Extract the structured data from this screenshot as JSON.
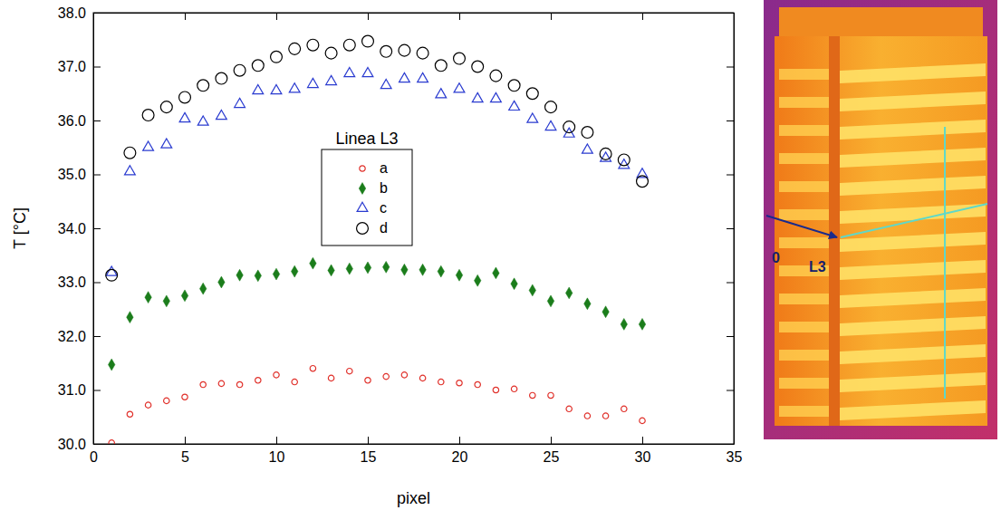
{
  "chart_data": {
    "type": "scatter",
    "x_label": "pixel",
    "y_label": "T [°C]",
    "legend_title": "Linea L3",
    "legend": "center",
    "grid": false,
    "xlim": [
      0,
      35
    ],
    "xticks": [
      0,
      5,
      10,
      15,
      20,
      25,
      30,
      35
    ],
    "ylim": [
      30,
      38
    ],
    "yticks": [
      {
        "value": 30,
        "label": "30.0"
      },
      {
        "value": 31,
        "label": "31.0"
      },
      {
        "value": 32,
        "label": "32.0"
      },
      {
        "value": 33,
        "label": "33.0"
      },
      {
        "value": 34,
        "label": "34.0"
      },
      {
        "value": 35,
        "label": "35.0"
      },
      {
        "value": 36,
        "label": "36.0"
      },
      {
        "value": 37,
        "label": "37.0"
      },
      {
        "value": 38,
        "label": "38.0"
      }
    ],
    "x": [
      1,
      2,
      3,
      4,
      5,
      6,
      7,
      8,
      9,
      10,
      11,
      12,
      13,
      14,
      15,
      16,
      17,
      18,
      19,
      20,
      21,
      22,
      23,
      24,
      25,
      26,
      27,
      28,
      29,
      30
    ],
    "series": [
      {
        "name": "a",
        "color": "#e0302a",
        "marker": "circle",
        "values": [
          30.02,
          30.55,
          30.72,
          30.8,
          30.87,
          31.1,
          31.12,
          31.1,
          31.18,
          31.28,
          31.15,
          31.4,
          31.22,
          31.35,
          31.18,
          31.25,
          31.28,
          31.22,
          31.15,
          31.13,
          31.1,
          31.0,
          31.02,
          30.9,
          30.9,
          30.65,
          30.52,
          30.52,
          30.65,
          30.43
        ]
      },
      {
        "name": "b",
        "color": "#1b7d1b",
        "marker": "diamond",
        "values": [
          31.47,
          32.35,
          32.72,
          32.65,
          32.75,
          32.88,
          33.0,
          33.13,
          33.12,
          33.15,
          33.2,
          33.35,
          33.22,
          33.25,
          33.27,
          33.28,
          33.23,
          33.23,
          33.2,
          33.13,
          33.03,
          33.17,
          32.97,
          32.85,
          32.65,
          32.8,
          32.6,
          32.45,
          32.22,
          32.22
        ]
      },
      {
        "name": "c",
        "color": "#2a3bd0",
        "marker": "triangle",
        "values": [
          33.18,
          35.05,
          35.5,
          35.55,
          36.03,
          35.97,
          36.08,
          36.3,
          36.55,
          36.55,
          36.58,
          36.67,
          36.72,
          36.87,
          36.87,
          36.65,
          36.77,
          36.77,
          36.48,
          36.58,
          36.4,
          36.4,
          36.25,
          36.02,
          35.88,
          35.75,
          35.45,
          35.3,
          35.17,
          35.0
        ]
      },
      {
        "name": "d",
        "color": "#000000",
        "marker": "circle",
        "values": [
          33.13,
          35.4,
          36.1,
          36.25,
          36.43,
          36.65,
          36.78,
          36.93,
          37.02,
          37.18,
          37.33,
          37.4,
          37.25,
          37.4,
          37.47,
          37.28,
          37.3,
          37.25,
          37.02,
          37.15,
          37.0,
          36.83,
          36.65,
          36.5,
          36.25,
          35.88,
          35.78,
          35.38,
          35.27,
          34.87
        ]
      }
    ]
  },
  "thermal_image": {
    "origin_label": "0",
    "line_label": "L3"
  }
}
